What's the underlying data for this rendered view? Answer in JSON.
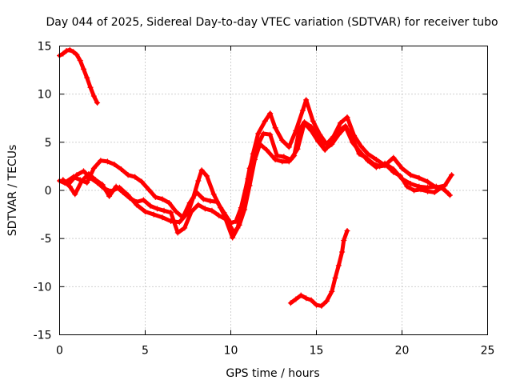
{
  "chart_data": {
    "type": "scatter",
    "title": "Day 044 of 2025, Sidereal Day-to-day VTEC variation (SDTVAR) for receiver tubo",
    "xlabel": "GPS time / hours",
    "ylabel": "SDTVAR / TECUs",
    "xlim": [
      0,
      25
    ],
    "ylim": [
      -15,
      15
    ],
    "xticks": [
      "0",
      "5",
      "10",
      "15",
      "20",
      "25"
    ],
    "yticks": [
      "15",
      "10",
      "5",
      "0",
      "-5",
      "-10",
      "-15"
    ],
    "grid": true,
    "marker": "+",
    "color": "#ff0000",
    "series": [
      {
        "name": "arc1",
        "points": [
          [
            0.0,
            14.0
          ],
          [
            0.2,
            14.2
          ],
          [
            0.4,
            14.5
          ],
          [
            0.6,
            14.6
          ],
          [
            0.8,
            14.4
          ],
          [
            1.0,
            14.1
          ],
          [
            1.2,
            13.5
          ],
          [
            1.4,
            12.6
          ],
          [
            1.6,
            11.7
          ],
          [
            1.8,
            10.7
          ],
          [
            2.0,
            9.8
          ],
          [
            2.2,
            9.1
          ]
        ]
      },
      {
        "name": "arc2",
        "points": [
          [
            0.0,
            1.0
          ],
          [
            0.5,
            0.6
          ],
          [
            1.0,
            1.6
          ],
          [
            1.4,
            2.0
          ],
          [
            1.8,
            1.3
          ],
          [
            2.2,
            0.8
          ],
          [
            2.6,
            0.2
          ],
          [
            3.0,
            -0.1
          ],
          [
            3.5,
            0.3
          ],
          [
            4.0,
            -0.5
          ],
          [
            4.5,
            -1.5
          ],
          [
            5.0,
            -2.2
          ],
          [
            5.5,
            -2.5
          ],
          [
            6.0,
            -2.8
          ],
          [
            6.5,
            -3.2
          ],
          [
            7.0,
            -3.3
          ],
          [
            7.5,
            -2.3
          ],
          [
            7.8,
            -0.8
          ],
          [
            8.1,
            1.0
          ],
          [
            8.3,
            2.1
          ],
          [
            8.6,
            1.5
          ],
          [
            9.0,
            -0.4
          ],
          [
            9.4,
            -1.8
          ],
          [
            9.8,
            -3.2
          ],
          [
            10.2,
            -4.4
          ],
          [
            10.5,
            -3.6
          ],
          [
            10.8,
            -2.0
          ],
          [
            11.1,
            0.5
          ],
          [
            11.4,
            3.2
          ],
          [
            11.7,
            4.8
          ],
          [
            12.1,
            4.2
          ],
          [
            12.6,
            3.2
          ],
          [
            13.0,
            3.0
          ],
          [
            13.4,
            3.0
          ],
          [
            13.7,
            3.6
          ],
          [
            14.0,
            6.3
          ],
          [
            14.3,
            7.1
          ],
          [
            14.7,
            6.6
          ],
          [
            15.1,
            5.5
          ],
          [
            15.5,
            4.3
          ],
          [
            15.9,
            4.8
          ],
          [
            16.3,
            5.8
          ],
          [
            16.7,
            6.6
          ],
          [
            17.1,
            5.0
          ],
          [
            17.5,
            4.1
          ],
          [
            18.0,
            3.1
          ],
          [
            18.5,
            2.4
          ],
          [
            19.0,
            2.8
          ],
          [
            19.5,
            2.2
          ],
          [
            20.0,
            1.2
          ],
          [
            20.5,
            0.7
          ],
          [
            21.0,
            0.4
          ],
          [
            21.5,
            0.3
          ],
          [
            22.0,
            0.4
          ],
          [
            22.4,
            0.2
          ],
          [
            22.8,
            -0.5
          ]
        ]
      },
      {
        "name": "arc3",
        "points": [
          [
            0.3,
            0.8
          ],
          [
            0.8,
            1.4
          ],
          [
            1.2,
            1.1
          ],
          [
            1.6,
            0.8
          ],
          [
            2.0,
            2.3
          ],
          [
            2.4,
            3.1
          ],
          [
            2.8,
            3.0
          ],
          [
            3.2,
            2.7
          ],
          [
            3.6,
            2.2
          ],
          [
            4.0,
            1.6
          ],
          [
            4.4,
            1.4
          ],
          [
            4.8,
            0.9
          ],
          [
            5.2,
            0.1
          ],
          [
            5.6,
            -0.7
          ],
          [
            6.0,
            -0.9
          ],
          [
            6.4,
            -1.3
          ],
          [
            6.8,
            -2.2
          ],
          [
            7.2,
            -2.8
          ],
          [
            7.6,
            -1.3
          ],
          [
            8.0,
            -0.2
          ],
          [
            8.4,
            -0.9
          ],
          [
            8.8,
            -1.1
          ],
          [
            9.2,
            -1.2
          ],
          [
            9.6,
            -2.3
          ],
          [
            10.0,
            -3.4
          ],
          [
            10.3,
            -3.2
          ],
          [
            10.6,
            -1.8
          ],
          [
            11.0,
            1.2
          ],
          [
            11.3,
            3.8
          ],
          [
            11.6,
            5.9
          ],
          [
            12.0,
            7.2
          ],
          [
            12.3,
            8.0
          ],
          [
            12.6,
            6.5
          ],
          [
            13.0,
            5.2
          ],
          [
            13.4,
            4.5
          ],
          [
            13.8,
            6.2
          ],
          [
            14.2,
            8.3
          ],
          [
            14.4,
            9.4
          ],
          [
            14.8,
            7.2
          ],
          [
            15.2,
            5.8
          ],
          [
            15.6,
            4.8
          ],
          [
            16.0,
            5.6
          ],
          [
            16.4,
            7.0
          ],
          [
            16.8,
            7.6
          ],
          [
            17.2,
            5.7
          ],
          [
            17.6,
            4.6
          ],
          [
            18.0,
            3.8
          ],
          [
            18.5,
            3.2
          ],
          [
            19.0,
            2.6
          ],
          [
            19.5,
            3.4
          ],
          [
            20.0,
            2.3
          ],
          [
            20.5,
            1.6
          ],
          [
            21.0,
            1.3
          ],
          [
            21.5,
            0.9
          ],
          [
            22.0,
            0.3
          ],
          [
            22.5,
            0.5
          ],
          [
            22.9,
            1.6
          ]
        ]
      },
      {
        "name": "arc4",
        "points": [
          [
            0.2,
            1.1
          ],
          [
            0.6,
            0.4
          ],
          [
            0.9,
            -0.4
          ],
          [
            1.3,
            1.0
          ],
          [
            1.7,
            1.7
          ],
          [
            2.1,
            1.1
          ],
          [
            2.5,
            0.6
          ],
          [
            2.9,
            -0.6
          ],
          [
            3.3,
            0.4
          ],
          [
            3.7,
            -0.2
          ],
          [
            4.1,
            -0.8
          ],
          [
            4.5,
            -1.2
          ],
          [
            4.9,
            -1.0
          ],
          [
            5.3,
            -1.6
          ],
          [
            5.7,
            -1.9
          ],
          [
            6.1,
            -2.1
          ],
          [
            6.5,
            -2.3
          ],
          [
            6.9,
            -4.4
          ],
          [
            7.3,
            -3.9
          ],
          [
            7.7,
            -2.2
          ],
          [
            8.1,
            -1.5
          ],
          [
            8.5,
            -1.9
          ],
          [
            8.9,
            -2.1
          ],
          [
            9.3,
            -2.6
          ],
          [
            9.7,
            -3.0
          ],
          [
            10.1,
            -4.9
          ],
          [
            10.4,
            -3.9
          ],
          [
            10.7,
            -1.5
          ],
          [
            11.1,
            2.3
          ],
          [
            11.5,
            4.4
          ],
          [
            11.9,
            5.9
          ],
          [
            12.3,
            5.8
          ],
          [
            12.7,
            3.6
          ],
          [
            13.1,
            3.5
          ],
          [
            13.5,
            3.2
          ],
          [
            13.9,
            4.3
          ],
          [
            14.3,
            7.0
          ],
          [
            14.7,
            6.2
          ],
          [
            15.1,
            5.1
          ],
          [
            15.5,
            4.2
          ],
          [
            15.9,
            5.1
          ],
          [
            16.3,
            6.2
          ],
          [
            16.7,
            6.7
          ],
          [
            17.1,
            5.4
          ],
          [
            17.5,
            3.8
          ],
          [
            17.9,
            3.4
          ],
          [
            18.3,
            2.8
          ],
          [
            18.7,
            2.5
          ],
          [
            19.1,
            2.6
          ],
          [
            19.5,
            1.9
          ],
          [
            19.9,
            1.5
          ],
          [
            20.3,
            0.4
          ],
          [
            20.7,
            0.0
          ],
          [
            21.1,
            0.1
          ],
          [
            21.5,
            -0.1
          ],
          [
            21.9,
            -0.2
          ],
          [
            22.3,
            0.3
          ],
          [
            22.7,
            -0.3
          ]
        ]
      },
      {
        "name": "arc5",
        "points": [
          [
            13.5,
            -11.7
          ],
          [
            13.8,
            -11.3
          ],
          [
            14.1,
            -10.9
          ],
          [
            14.4,
            -11.2
          ],
          [
            14.7,
            -11.4
          ],
          [
            15.0,
            -11.9
          ],
          [
            15.3,
            -12.0
          ],
          [
            15.6,
            -11.5
          ],
          [
            15.9,
            -10.5
          ],
          [
            16.1,
            -9.1
          ],
          [
            16.3,
            -7.8
          ],
          [
            16.5,
            -6.4
          ],
          [
            16.6,
            -5.2
          ],
          [
            16.8,
            -4.2
          ]
        ]
      }
    ]
  }
}
